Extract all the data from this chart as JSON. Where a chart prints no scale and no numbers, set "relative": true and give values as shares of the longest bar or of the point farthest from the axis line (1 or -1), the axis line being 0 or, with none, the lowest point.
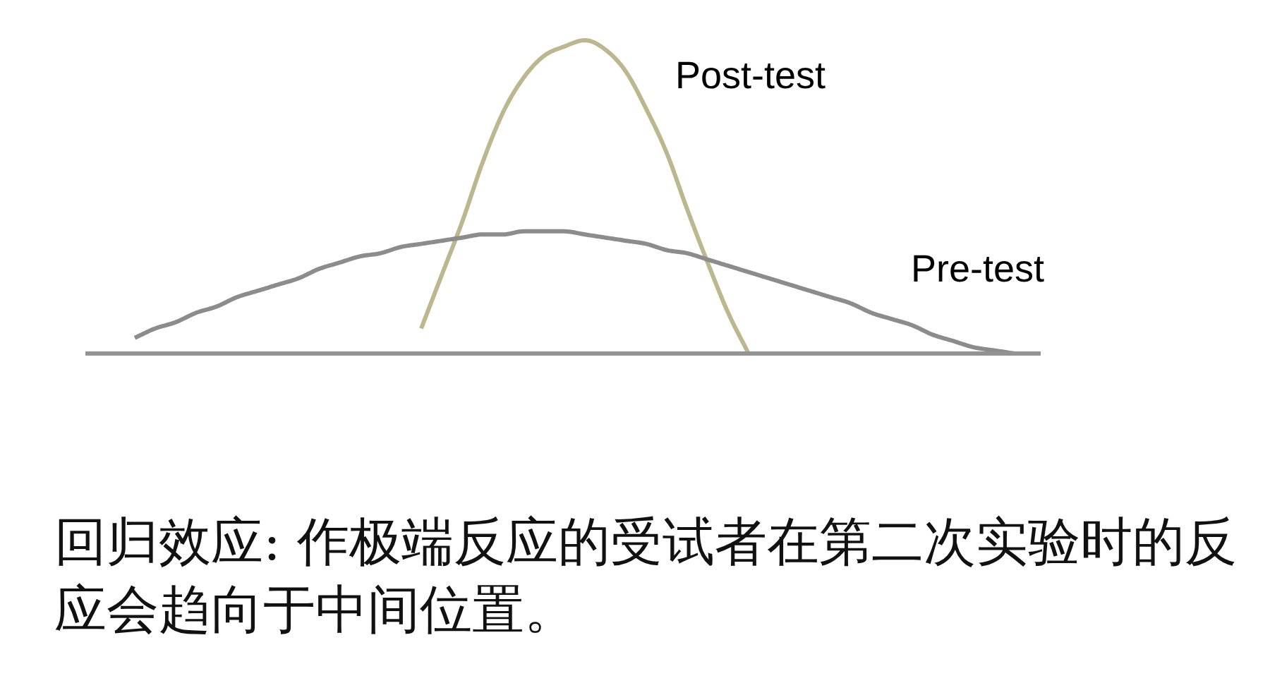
{
  "chart_data": {
    "type": "line",
    "relative": true,
    "grid": false,
    "categories": [
      null,
      null,
      null,
      null,
      null,
      null,
      null,
      null,
      null,
      null,
      null,
      null,
      null,
      null,
      null,
      null,
      null,
      null,
      null,
      null,
      null,
      null,
      null,
      null,
      null,
      null,
      null,
      null,
      null,
      null,
      null,
      null,
      null,
      null,
      null,
      null,
      null,
      null,
      null,
      null,
      null,
      null,
      null,
      null
    ],
    "series": [
      {
        "name": "Post-test",
        "color": "#bdb78f",
        "values": [
          null,
          null,
          null,
          null,
          null,
          null,
          null,
          null,
          null,
          null,
          null,
          null,
          null,
          null,
          0.08,
          0.25,
          0.42,
          0.61,
          0.77,
          0.88,
          0.95,
          0.98,
          1,
          0.97,
          0.9,
          0.78,
          0.64,
          0.46,
          0.29,
          0.13,
          0,
          null,
          null,
          null,
          null,
          null,
          null,
          null,
          null,
          null,
          null,
          null,
          null,
          null
        ]
      },
      {
        "name": "Pre-test",
        "color": "#8c8c8c",
        "values": [
          0.05,
          0.08,
          0.1,
          0.13,
          0.15,
          0.18,
          0.2,
          0.22,
          0.24,
          0.27,
          0.29,
          0.31,
          0.32,
          0.34,
          0.35,
          0.36,
          0.37,
          0.38,
          0.38,
          0.39,
          0.39,
          0.39,
          0.38,
          0.37,
          0.36,
          0.35,
          0.33,
          0.32,
          0.3,
          0.28,
          0.26,
          0.24,
          0.22,
          0.2,
          0.18,
          0.16,
          0.13,
          0.11,
          0.09,
          0.06,
          0.04,
          0.02,
          0.01,
          0
        ]
      }
    ],
    "annotations": [
      "回归效应: 作极端反应的受试者在第二次实验时的反应会趋向于中间位置。"
    ]
  }
}
